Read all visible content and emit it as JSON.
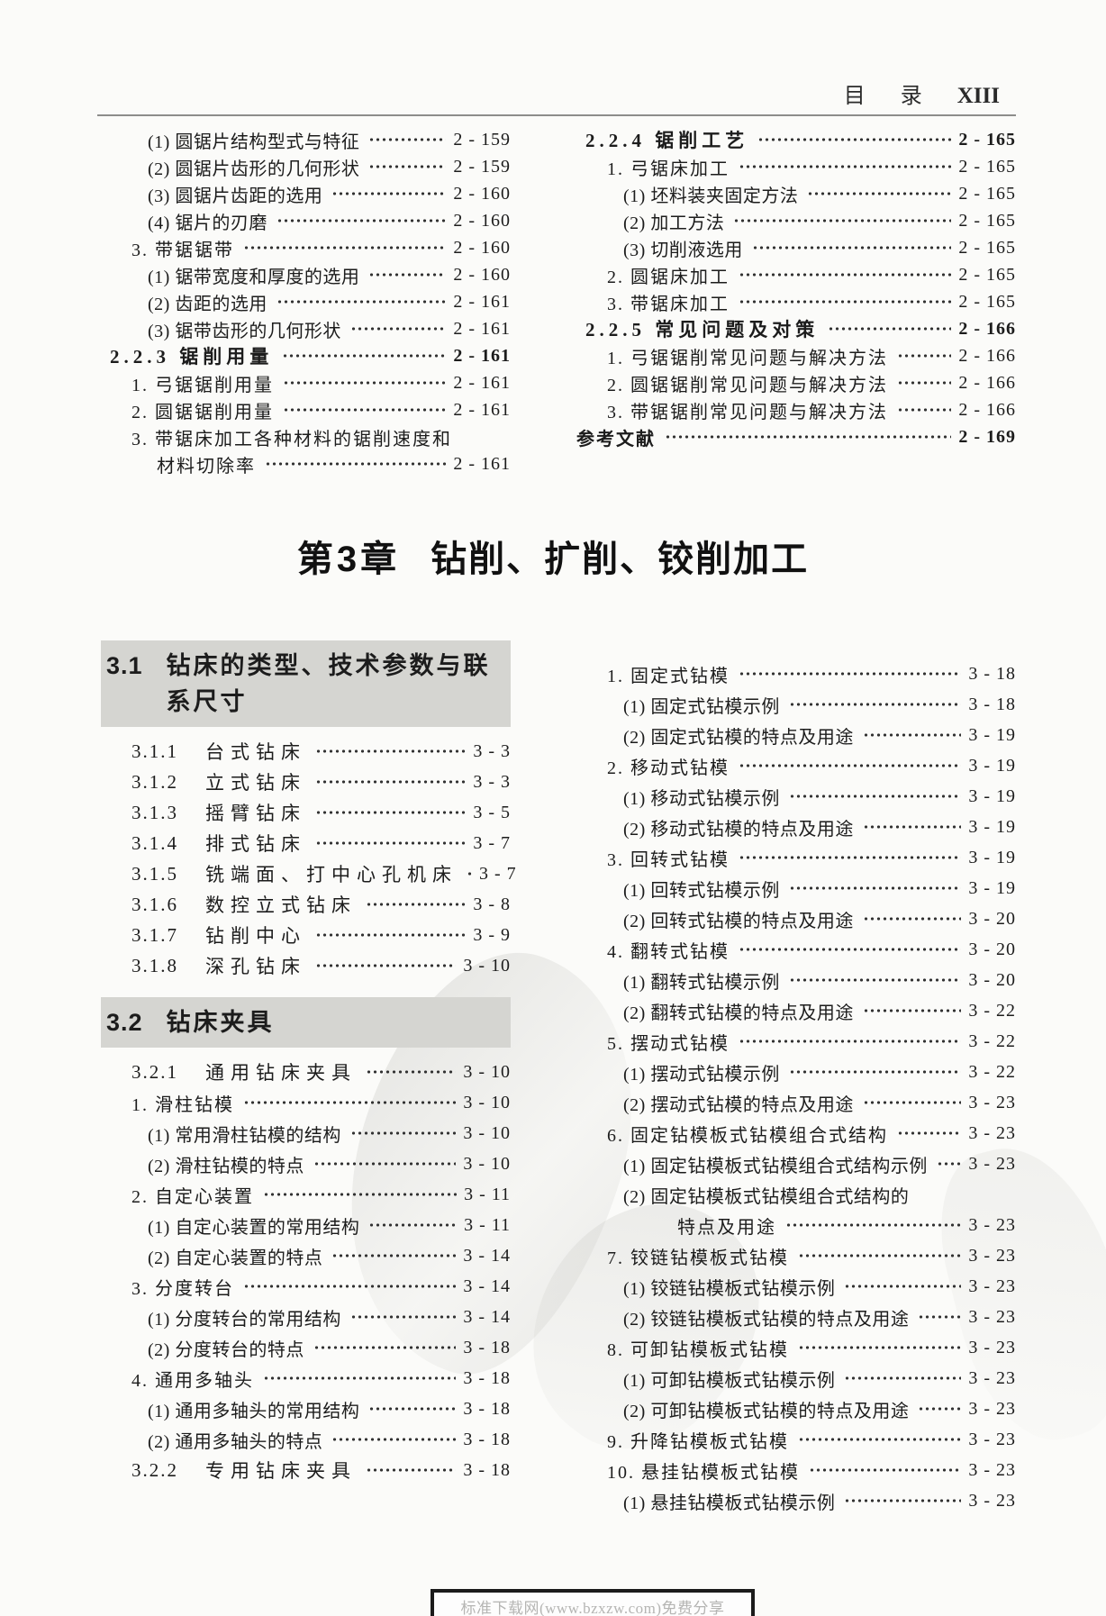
{
  "header": {
    "zi1": "目",
    "zi2": "录",
    "page": "XIII"
  },
  "chapter": {
    "prefix": "第3章",
    "title": "钻削、扩削、铰削加工"
  },
  "footer": {
    "text": "标准下载网(www.bzxzw.com)免费分享"
  },
  "colors": {
    "paper": "#fbfbf9",
    "text": "#1c1c1c",
    "section_heading_bg": "#d5d5d1",
    "header_rule": "#8d8d8b",
    "footer_border": "#1b1b1b",
    "footer_text": "#b5b5b3"
  },
  "toc_top": {
    "left": [
      {
        "cls": "paren",
        "text": "(1) 圆锯片结构型式与特征",
        "page": "2-159"
      },
      {
        "cls": "paren",
        "text": "(2) 圆锯片齿形的几何形状",
        "page": "2-159"
      },
      {
        "cls": "paren",
        "text": "(3) 圆锯片齿距的选用",
        "page": "2-160"
      },
      {
        "cls": "paren",
        "text": "(4) 锯片的刃磨",
        "page": "2-160"
      },
      {
        "cls": "num",
        "text": "3. 带锯锯带",
        "page": "2-160"
      },
      {
        "cls": "paren",
        "text": "(1) 锯带宽度和厚度的选用",
        "page": "2-160"
      },
      {
        "cls": "paren",
        "text": "(2) 齿距的选用",
        "page": "2-161"
      },
      {
        "cls": "paren",
        "text": "(3) 锯带齿形的几何形状",
        "page": "2-161"
      },
      {
        "cls": "head",
        "text": "2.2.3 锯削用量",
        "page": "2-161"
      },
      {
        "cls": "num",
        "text": "1. 弓锯锯削用量",
        "page": "2-161"
      },
      {
        "cls": "num",
        "text": "2. 圆锯锯削用量",
        "page": "2-161"
      },
      {
        "cls": "num",
        "text": "3. 带锯床加工各种材料的锯削速度和",
        "page": null
      },
      {
        "cls": "cont",
        "text": "材料切除率",
        "page": "2-161"
      }
    ],
    "right": [
      {
        "cls": "head",
        "text": "2.2.4 锯削工艺",
        "page": "2-165"
      },
      {
        "cls": "num",
        "text": "1. 弓锯床加工",
        "page": "2-165"
      },
      {
        "cls": "paren",
        "text": "(1) 坯料装夹固定方法",
        "page": "2-165"
      },
      {
        "cls": "paren",
        "text": "(2) 加工方法",
        "page": "2-165"
      },
      {
        "cls": "paren",
        "text": "(3) 切削液选用",
        "page": "2-165"
      },
      {
        "cls": "num",
        "text": "2. 圆锯床加工",
        "page": "2-165"
      },
      {
        "cls": "num",
        "text": "3. 带锯床加工",
        "page": "2-165"
      },
      {
        "cls": "head",
        "text": "2.2.5 常见问题及对策",
        "page": "2-166"
      },
      {
        "cls": "num",
        "text": "1. 弓锯锯削常见问题与解决方法",
        "page": "2-166"
      },
      {
        "cls": "num",
        "text": "2. 圆锯锯削常见问题与解决方法",
        "page": "2-166"
      },
      {
        "cls": "num",
        "text": "3. 带锯锯削常见问题与解决方法",
        "page": "2-166"
      },
      {
        "cls": "ref",
        "text": "参考文献",
        "page": "2-169"
      }
    ]
  },
  "toc_ch3": {
    "left": [
      {
        "cls": "h2",
        "num": "3.1",
        "text": "钻床的类型、技术参数与联系尺寸"
      },
      {
        "cls": "h3",
        "num": "3.1.1",
        "text": "台式钻床",
        "page": "3-3"
      },
      {
        "cls": "h3",
        "num": "3.1.2",
        "text": "立式钻床",
        "page": "3-3"
      },
      {
        "cls": "h3",
        "num": "3.1.3",
        "text": "摇臂钻床",
        "page": "3-5"
      },
      {
        "cls": "h3",
        "num": "3.1.4",
        "text": "排式钻床",
        "page": "3-7"
      },
      {
        "cls": "h3",
        "num": "3.1.5",
        "text": "铣端面、打中心孔机床",
        "page": "3-7"
      },
      {
        "cls": "h3",
        "num": "3.1.6",
        "text": "数控立式钻床",
        "page": "3-8"
      },
      {
        "cls": "h3",
        "num": "3.1.7",
        "text": "钻削中心",
        "page": "3-9"
      },
      {
        "cls": "h3",
        "num": "3.1.8",
        "text": "深孔钻床",
        "page": "3-10"
      },
      {
        "cls": "h2",
        "num": "3.2",
        "text": "钻床夹具"
      },
      {
        "cls": "h3",
        "num": "3.2.1",
        "text": "通用钻床夹具",
        "page": "3-10"
      },
      {
        "cls": "num",
        "text": "1. 滑柱钻模",
        "page": "3-10"
      },
      {
        "cls": "paren",
        "text": "(1) 常用滑柱钻模的结构",
        "page": "3-10"
      },
      {
        "cls": "paren",
        "text": "(2) 滑柱钻模的特点",
        "page": "3-10"
      },
      {
        "cls": "num",
        "text": "2. 自定心装置",
        "page": "3-11"
      },
      {
        "cls": "paren",
        "text": "(1) 自定心装置的常用结构",
        "page": "3-11"
      },
      {
        "cls": "paren",
        "text": "(2) 自定心装置的特点",
        "page": "3-14"
      },
      {
        "cls": "num",
        "text": "3. 分度转台",
        "page": "3-14"
      },
      {
        "cls": "paren",
        "text": "(1) 分度转台的常用结构",
        "page": "3-14"
      },
      {
        "cls": "paren",
        "text": "(2) 分度转台的特点",
        "page": "3-18"
      },
      {
        "cls": "num",
        "text": "4. 通用多轴头",
        "page": "3-18"
      },
      {
        "cls": "paren",
        "text": "(1) 通用多轴头的常用结构",
        "page": "3-18"
      },
      {
        "cls": "paren",
        "text": "(2) 通用多轴头的特点",
        "page": "3-18"
      },
      {
        "cls": "h3",
        "num": "3.2.2",
        "text": "专用钻床夹具",
        "page": "3-18"
      }
    ],
    "right": [
      {
        "cls": "num",
        "text": "1. 固定式钻模",
        "page": "3-18"
      },
      {
        "cls": "paren",
        "text": "(1) 固定式钻模示例",
        "page": "3-18"
      },
      {
        "cls": "paren",
        "text": "(2) 固定式钻模的特点及用途",
        "page": "3-19"
      },
      {
        "cls": "num",
        "text": "2. 移动式钻模",
        "page": "3-19"
      },
      {
        "cls": "paren",
        "text": "(1) 移动式钻模示例",
        "page": "3-19"
      },
      {
        "cls": "paren",
        "text": "(2) 移动式钻模的特点及用途",
        "page": "3-19"
      },
      {
        "cls": "num",
        "text": "3. 回转式钻模",
        "page": "3-19"
      },
      {
        "cls": "paren",
        "text": "(1) 回转式钻模示例",
        "page": "3-19"
      },
      {
        "cls": "paren",
        "text": "(2) 回转式钻模的特点及用途",
        "page": "3-20"
      },
      {
        "cls": "num",
        "text": "4. 翻转式钻模",
        "page": "3-20"
      },
      {
        "cls": "paren",
        "text": "(1) 翻转式钻模示例",
        "page": "3-20"
      },
      {
        "cls": "paren",
        "text": "(2) 翻转式钻模的特点及用途",
        "page": "3-22"
      },
      {
        "cls": "num",
        "text": "5. 摆动式钻模",
        "page": "3-22"
      },
      {
        "cls": "paren",
        "text": "(1) 摆动式钻模示例",
        "page": "3-22"
      },
      {
        "cls": "paren",
        "text": "(2) 摆动式钻模的特点及用途",
        "page": "3-23"
      },
      {
        "cls": "num",
        "text": "6. 固定钻模板式钻模组合式结构",
        "page": "3-23"
      },
      {
        "cls": "paren",
        "text": "(1) 固定钻模板式钻模组合式结构示例",
        "page": "3-23"
      },
      {
        "cls": "paren",
        "text": "(2) 固定钻模板式钻模组合式结构的",
        "page": null
      },
      {
        "cls": "cont2",
        "text": "特点及用途",
        "page": "3-23"
      },
      {
        "cls": "num",
        "text": "7. 铰链钻模板式钻模",
        "page": "3-23"
      },
      {
        "cls": "paren",
        "text": "(1) 铰链钻模板式钻模示例",
        "page": "3-23"
      },
      {
        "cls": "paren",
        "text": "(2) 铰链钻模板式钻模的特点及用途",
        "page": "3-23"
      },
      {
        "cls": "num",
        "text": "8. 可卸钻模板式钻模",
        "page": "3-23"
      },
      {
        "cls": "paren",
        "text": "(1) 可卸钻模板式钻模示例",
        "page": "3-23"
      },
      {
        "cls": "paren",
        "text": "(2) 可卸钻模板式钻模的特点及用途",
        "page": "3-23"
      },
      {
        "cls": "num",
        "text": "9. 升降钻模板式钻模",
        "page": "3-23"
      },
      {
        "cls": "num",
        "text": "10. 悬挂钻模板式钻模",
        "page": "3-23"
      },
      {
        "cls": "paren",
        "text": "(1) 悬挂钻模板式钻模示例",
        "page": "3-23"
      }
    ]
  }
}
